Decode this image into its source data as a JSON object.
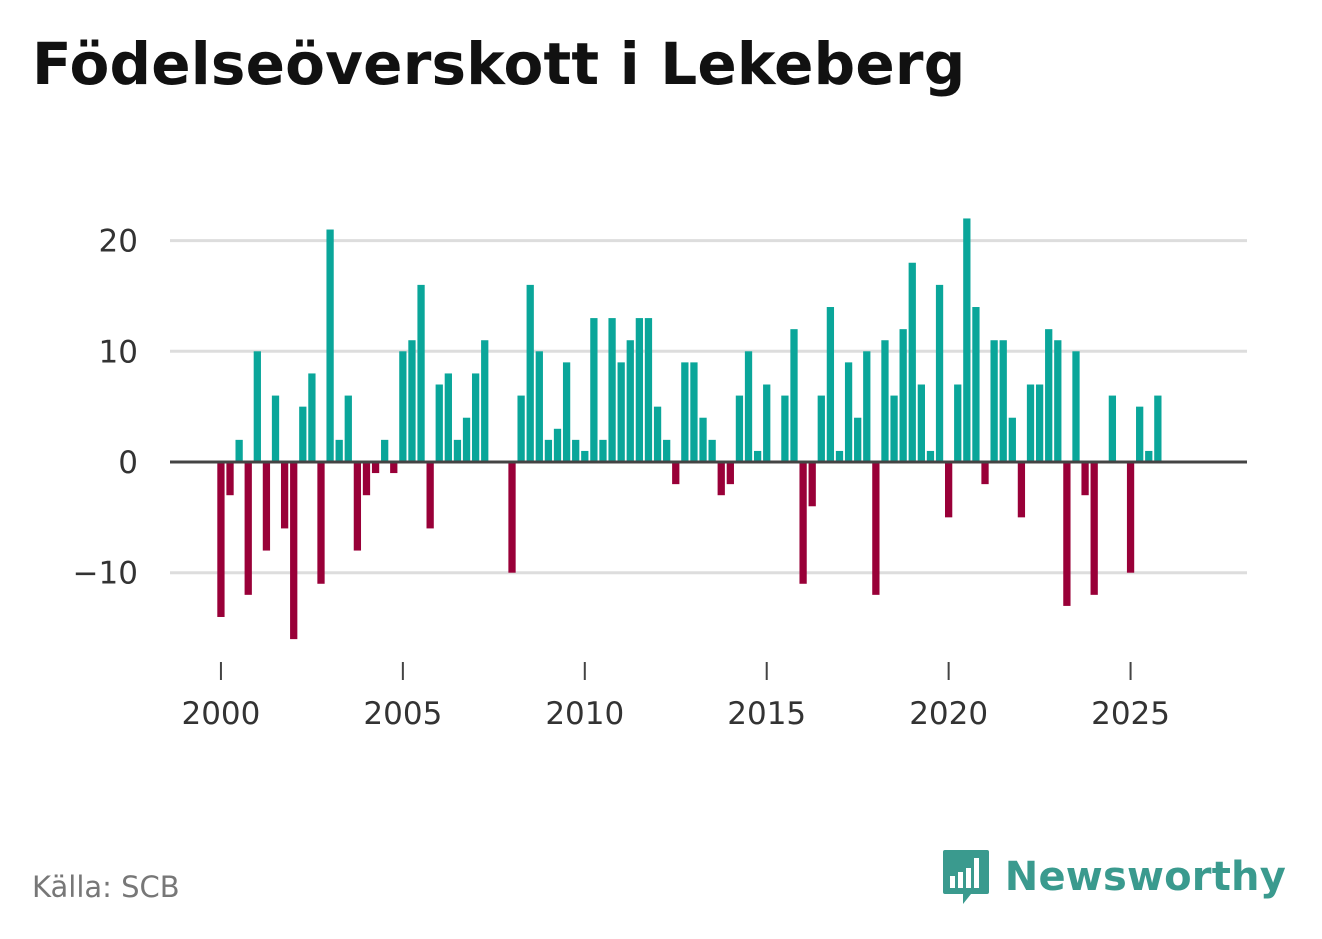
{
  "title": "Födelseöverskott i Lekeberg",
  "source": "Källa: SCB",
  "brand": "Newsworthy",
  "colors": {
    "positive": "#0aa69a",
    "negative": "#990038",
    "grid": "#dddddd",
    "zero": "#444444",
    "brand": "#3a9a8e"
  },
  "chart_data": {
    "type": "bar",
    "title": "Födelseöverskott i Lekeberg",
    "xlabel": "",
    "ylabel": "",
    "unit": "quarterly",
    "x_ticks": [
      "2000",
      "2005",
      "2010",
      "2015",
      "2020",
      "2025"
    ],
    "y_ticks": [
      20,
      10,
      0,
      -10
    ],
    "y_tick_labels": [
      "20",
      "10",
      "0",
      "−10"
    ],
    "ylim": [
      -17,
      23
    ],
    "xlim": [
      1998.6,
      2028.2
    ],
    "start": 2000.0,
    "step": 0.25,
    "values": [
      -14,
      -3,
      2,
      -12,
      10,
      -8,
      6,
      -6,
      -16,
      5,
      8,
      -11,
      21,
      2,
      6,
      -8,
      -3,
      -1,
      2,
      -1,
      10,
      11,
      16,
      -6,
      7,
      8,
      2,
      4,
      8,
      11,
      0,
      0,
      -10,
      6,
      16,
      10,
      2,
      3,
      9,
      2,
      1,
      13,
      2,
      13,
      9,
      11,
      13,
      13,
      5,
      2,
      -2,
      9,
      9,
      4,
      2,
      -3,
      -2,
      6,
      10,
      1,
      7,
      0,
      6,
      12,
      -11,
      -4,
      6,
      14,
      1,
      9,
      4,
      10,
      -12,
      11,
      6,
      12,
      18,
      7,
      1,
      16,
      -5,
      7,
      22,
      14,
      -2,
      11,
      11,
      4,
      -5,
      7,
      7,
      12,
      11,
      -13,
      10,
      -3,
      -12,
      0,
      6,
      0,
      -10,
      5,
      1,
      6
    ]
  }
}
